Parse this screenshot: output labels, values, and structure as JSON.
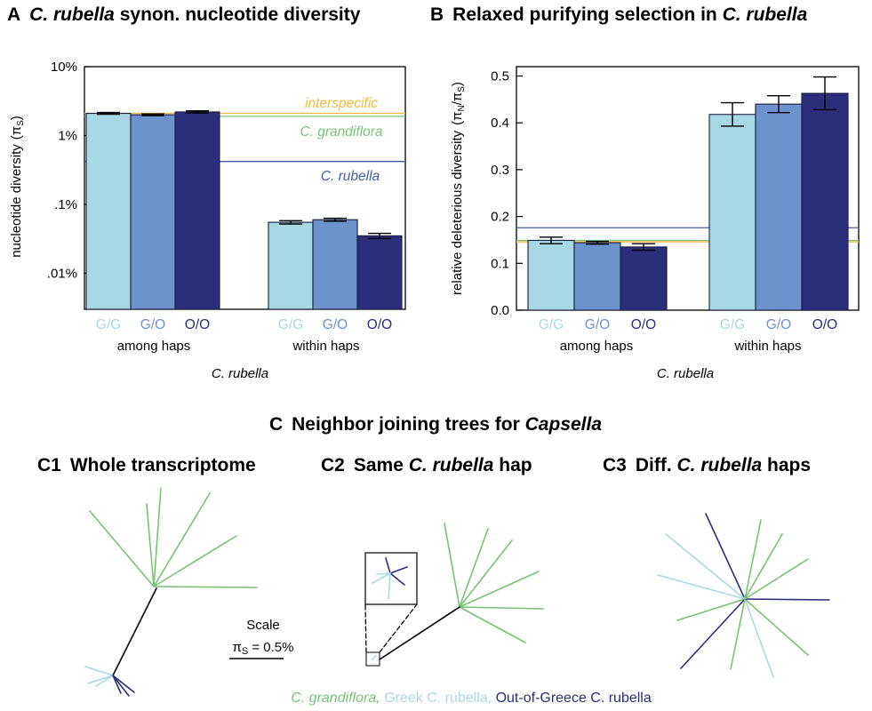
{
  "colors": {
    "gg": "#a8d8e4",
    "go": "#6c93cb",
    "oo": "#2b2e7a",
    "grandiflora": "#79c274",
    "interspecific": "#f5b73a",
    "rubella_line": "#3f5fa3",
    "axis": "#000000"
  },
  "panel_a": {
    "letter": "A",
    "title_italic": "C. rubella",
    "title_rest": " synon. nucleotide diversity",
    "ylabel": "nucleotide diversity",
    "ylabel_symbol": "(π",
    "ylabel_sub": "S",
    "ylabel_close": ")",
    "line_labels": {
      "interspecific": "interspecific",
      "grandiflora": "C. grandiflora",
      "rubella": "C. rubella"
    },
    "group_labels": [
      "among haps",
      "within haps"
    ],
    "xlabel": "C. rubella"
  },
  "panel_b": {
    "letter": "B",
    "title_rest": "Relaxed purifying selection in ",
    "title_italic": "C. rubella",
    "ylabel": "relative deleterious diversity",
    "ylabel_symbol_open": "(π",
    "ylabel_sub_n": "N",
    "ylabel_slash": "/π",
    "ylabel_sub_s": "S",
    "ylabel_close": ")",
    "group_labels": [
      "among haps",
      "within haps"
    ],
    "xlabel": "C. rubella"
  },
  "chart_data": [
    {
      "type": "bar",
      "panel": "A",
      "yscale": "log",
      "ylim": [
        3e-05,
        0.1
      ],
      "yticks": [
        0.0001,
        0.001,
        0.01,
        0.1
      ],
      "ytick_labels": [
        ".01%",
        ".1%",
        "1%",
        "10%"
      ],
      "groups": [
        "among haps",
        "within haps"
      ],
      "categories": [
        "G/G",
        "G/O",
        "O/O"
      ],
      "values": [
        [
          0.021,
          0.02,
          0.022
        ],
        [
          0.00055,
          0.0006,
          0.00035
        ]
      ],
      "errors": [
        [
          0.0006,
          0.0006,
          0.0008
        ],
        [
          3e-05,
          3e-05,
          3e-05
        ]
      ],
      "reference_lines": [
        {
          "label": "interspecific",
          "value": 0.021
        },
        {
          "label": "C. grandiflora",
          "value": 0.019
        },
        {
          "label": "C. rubella",
          "value": 0.0042
        }
      ]
    },
    {
      "type": "bar",
      "panel": "B",
      "ylim": [
        0,
        0.52
      ],
      "yticks": [
        0.0,
        0.1,
        0.2,
        0.3,
        0.4,
        0.5
      ],
      "ytick_labels": [
        "0.0",
        "0.1",
        "0.2",
        "0.3",
        "0.4",
        "0.5"
      ],
      "groups": [
        "among haps",
        "within haps"
      ],
      "categories": [
        "G/G",
        "G/O",
        "O/O"
      ],
      "values": [
        [
          0.149,
          0.144,
          0.135
        ],
        [
          0.418,
          0.44,
          0.463
        ]
      ],
      "errors": [
        [
          0.007,
          0.003,
          0.007
        ],
        [
          0.025,
          0.018,
          0.035
        ]
      ],
      "reference_lines": [
        {
          "label": "C. rubella",
          "value": 0.176
        },
        {
          "label": "C. grandiflora",
          "value": 0.149
        },
        {
          "label": "interspecific",
          "value": 0.146
        }
      ]
    }
  ],
  "panel_c": {
    "letter": "C",
    "title_rest": "Neighbor joining trees for ",
    "title_italic": "Capsella",
    "c1": {
      "label": "C1",
      "title": "Whole transcriptome"
    },
    "c2": {
      "label": "C2",
      "title_pre": "Same ",
      "title_italic": "C. rubella",
      "title_post": " hap"
    },
    "c3": {
      "label": "C3",
      "title_pre": "Diff. ",
      "title_italic": "C. rubella",
      "title_post": " haps"
    },
    "scale_title": "Scale",
    "scale_symbol": "π",
    "scale_sub": "S",
    "scale_value": " = 0.5%",
    "legend": {
      "grandiflora": "C. grandiflora,",
      "greek": "Greek C. rubella,",
      "oog": "Out-of-Greece C. rubella"
    }
  }
}
